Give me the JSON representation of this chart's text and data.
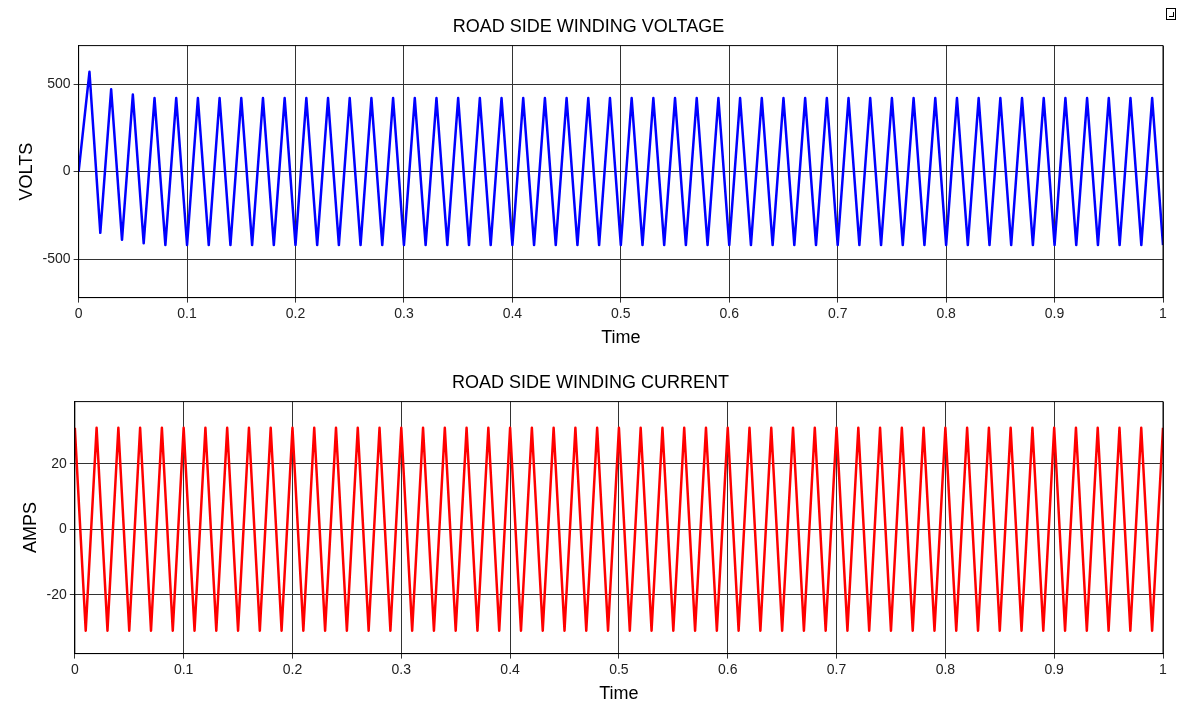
{
  "chart_data": [
    {
      "type": "line",
      "title": "ROAD SIDE WINDING VOLTAGE",
      "xlabel": "Time",
      "ylabel": "VOLTS",
      "grid": true,
      "legend": false,
      "marker": "none",
      "x": [
        0,
        0.01,
        0.02,
        0.03,
        0.04,
        0.05,
        0.06,
        0.07,
        0.08,
        0.09,
        0.1,
        0.11,
        0.12,
        0.13,
        0.14,
        0.15,
        0.16,
        0.17,
        0.18,
        0.19,
        0.2,
        0.21,
        0.22,
        0.23,
        0.24,
        0.25,
        0.26,
        0.27,
        0.28,
        0.29,
        0.3,
        0.31,
        0.32,
        0.33,
        0.34,
        0.35,
        0.36,
        0.37,
        0.38,
        0.39,
        0.4,
        0.41,
        0.42,
        0.43,
        0.44,
        0.45,
        0.46,
        0.47,
        0.48,
        0.49,
        0.5,
        0.51,
        0.52,
        0.53,
        0.54,
        0.55,
        0.56,
        0.57,
        0.58,
        0.59,
        0.6,
        0.61,
        0.62,
        0.63,
        0.64,
        0.65,
        0.66,
        0.67,
        0.68,
        0.69,
        0.7,
        0.71,
        0.72,
        0.73,
        0.74,
        0.75,
        0.76,
        0.77,
        0.78,
        0.79,
        0.8,
        0.81,
        0.82,
        0.83,
        0.84,
        0.85,
        0.86,
        0.87,
        0.88,
        0.89,
        0.9,
        0.91,
        0.92,
        0.93,
        0.94,
        0.95,
        0.96,
        0.97,
        0.98,
        0.99,
        1
      ],
      "series": [
        {
          "color": "#0000ff",
          "values": [
            0,
            570,
            -350,
            470,
            -390,
            440,
            -410,
            420,
            -420,
            420,
            -420,
            420,
            -420,
            420,
            -420,
            420,
            -420,
            420,
            -420,
            420,
            -420,
            420,
            -420,
            420,
            -420,
            420,
            -420,
            420,
            -420,
            420,
            -420,
            420,
            -420,
            420,
            -420,
            420,
            -420,
            420,
            -420,
            420,
            -420,
            420,
            -420,
            420,
            -420,
            420,
            -420,
            420,
            -420,
            420,
            -420,
            420,
            -420,
            420,
            -420,
            420,
            -420,
            420,
            -420,
            420,
            -420,
            420,
            -420,
            420,
            -420,
            420,
            -420,
            420,
            -420,
            420,
            -420,
            420,
            -420,
            420,
            -420,
            420,
            -420,
            420,
            -420,
            420,
            -420,
            420,
            -420,
            420,
            -420,
            420,
            -420,
            420,
            -420,
            420,
            -420,
            420,
            -420,
            420,
            -420,
            420,
            -420,
            420,
            -420,
            420,
            -420
          ]
        }
      ],
      "xlim": [
        0,
        1
      ],
      "xticks": [
        0,
        0.1,
        0.2,
        0.3,
        0.4,
        0.5,
        0.6,
        0.7,
        0.8,
        0.9,
        1
      ],
      "ylim": [
        -720,
        720
      ],
      "yticks": [
        -500,
        0,
        500
      ]
    },
    {
      "type": "line",
      "title": "ROAD SIDE WINDING CURRENT",
      "xlabel": "Time",
      "ylabel": "AMPS",
      "grid": true,
      "legend": false,
      "marker": "none",
      "x": [
        0,
        0.01,
        0.02,
        0.03,
        0.04,
        0.05,
        0.06,
        0.07,
        0.08,
        0.09,
        0.1,
        0.11,
        0.12,
        0.13,
        0.14,
        0.15,
        0.16,
        0.17,
        0.18,
        0.19,
        0.2,
        0.21,
        0.22,
        0.23,
        0.24,
        0.25,
        0.26,
        0.27,
        0.28,
        0.29,
        0.3,
        0.31,
        0.32,
        0.33,
        0.34,
        0.35,
        0.36,
        0.37,
        0.38,
        0.39,
        0.4,
        0.41,
        0.42,
        0.43,
        0.44,
        0.45,
        0.46,
        0.47,
        0.48,
        0.49,
        0.5,
        0.51,
        0.52,
        0.53,
        0.54,
        0.55,
        0.56,
        0.57,
        0.58,
        0.59,
        0.6,
        0.61,
        0.62,
        0.63,
        0.64,
        0.65,
        0.66,
        0.67,
        0.68,
        0.69,
        0.7,
        0.71,
        0.72,
        0.73,
        0.74,
        0.75,
        0.76,
        0.77,
        0.78,
        0.79,
        0.8,
        0.81,
        0.82,
        0.83,
        0.84,
        0.85,
        0.86,
        0.87,
        0.88,
        0.89,
        0.9,
        0.91,
        0.92,
        0.93,
        0.94,
        0.95,
        0.96,
        0.97,
        0.98,
        0.99,
        1
      ],
      "series": [
        {
          "color": "#ff0000",
          "values": [
            31,
            -31,
            31,
            -31,
            31,
            -31,
            31,
            -31,
            31,
            -31,
            31,
            -31,
            31,
            -31,
            31,
            -31,
            31,
            -31,
            31,
            -31,
            31,
            -31,
            31,
            -31,
            31,
            -31,
            31,
            -31,
            31,
            -31,
            31,
            -31,
            31,
            -31,
            31,
            -31,
            31,
            -31,
            31,
            -31,
            31,
            -31,
            31,
            -31,
            31,
            -31,
            31,
            -31,
            31,
            -31,
            31,
            -31,
            31,
            -31,
            31,
            -31,
            31,
            -31,
            31,
            -31,
            31,
            -31,
            31,
            -31,
            31,
            -31,
            31,
            -31,
            31,
            -31,
            31,
            -31,
            31,
            -31,
            31,
            -31,
            31,
            -31,
            31,
            -31,
            31,
            -31,
            31,
            -31,
            31,
            -31,
            31,
            -31,
            31,
            -31,
            31,
            -31,
            31,
            -31,
            31,
            -31,
            31,
            -31,
            31,
            -31,
            31
          ]
        }
      ],
      "xlim": [
        0,
        1
      ],
      "xticks": [
        0,
        0.1,
        0.2,
        0.3,
        0.4,
        0.5,
        0.6,
        0.7,
        0.8,
        0.9,
        1
      ],
      "ylim": [
        -38,
        39
      ],
      "yticks": [
        -20,
        0,
        20
      ]
    }
  ]
}
